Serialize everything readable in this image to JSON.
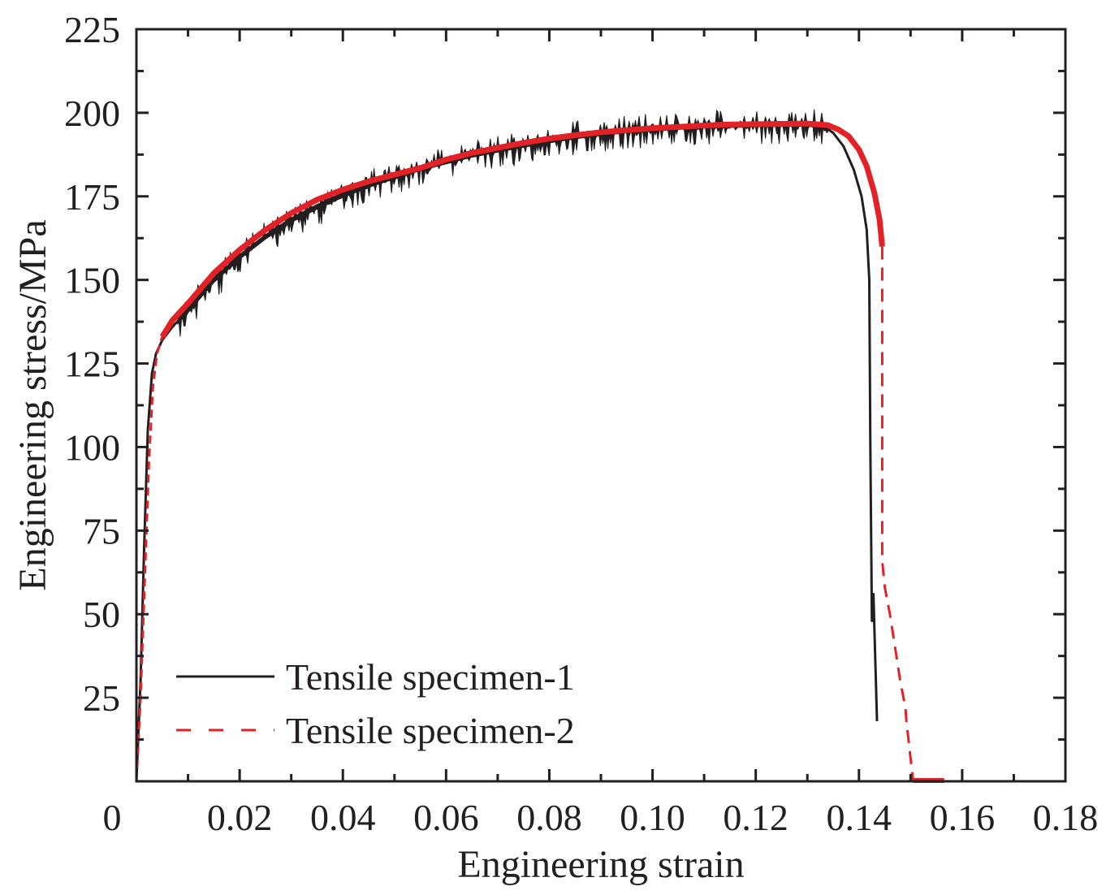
{
  "chart_data": {
    "type": "line",
    "title": "",
    "xlabel": "Engineering strain",
    "ylabel": "Engineering stress/MPa",
    "xlim": [
      0,
      0.18
    ],
    "ylim": [
      0,
      225
    ],
    "grid": false,
    "legend_position": "bottom-left",
    "x_ticks": [
      0,
      0.02,
      0.04,
      0.06,
      0.08,
      0.1,
      0.12,
      0.14,
      0.16,
      0.18
    ],
    "x_tick_labels": [
      "0",
      "0.02",
      "0.04",
      "0.06",
      "0.08",
      "0.10",
      "0.12",
      "0.14",
      "0.16",
      "0.18"
    ],
    "y_ticks": [
      25,
      50,
      75,
      100,
      125,
      150,
      175,
      200,
      225
    ],
    "y_tick_labels": [
      "25",
      "50",
      "75",
      "100",
      "125",
      "150",
      "175",
      "200",
      "225"
    ],
    "series": [
      {
        "name": "Tensile specimen-1",
        "color": "#231f20",
        "style": "solid",
        "noisy": true,
        "x": [
          0.0,
          0.0008,
          0.0015,
          0.0022,
          0.003,
          0.0038,
          0.005,
          0.007,
          0.01,
          0.015,
          0.02,
          0.025,
          0.03,
          0.035,
          0.04,
          0.045,
          0.05,
          0.055,
          0.06,
          0.065,
          0.07,
          0.075,
          0.08,
          0.085,
          0.09,
          0.095,
          0.1,
          0.105,
          0.11,
          0.115,
          0.12,
          0.125,
          0.13,
          0.133,
          0.135,
          0.137,
          0.139,
          0.1405,
          0.1415,
          0.142,
          0.1422,
          0.1425,
          0.1428,
          0.1435
        ],
        "y": [
          0,
          30,
          70,
          105,
          122,
          128,
          132,
          136,
          141,
          150,
          157,
          163,
          168,
          172,
          175.5,
          178.5,
          181,
          183.5,
          185.5,
          187.5,
          189,
          190.5,
          191.8,
          193,
          194,
          194.8,
          195.3,
          195.8,
          196.2,
          196.4,
          196.6,
          196.7,
          196.8,
          196.2,
          194,
          190,
          183,
          175,
          165,
          150,
          100,
          48,
          56,
          18
        ]
      },
      {
        "name": "Tensile specimen-2",
        "color": "#e32228",
        "style": "dashed",
        "noisy": false,
        "x": [
          0.0,
          0.0008,
          0.0016,
          0.0024,
          0.0032,
          0.004,
          0.005,
          0.007,
          0.01,
          0.015,
          0.02,
          0.025,
          0.03,
          0.035,
          0.04,
          0.045,
          0.05,
          0.055,
          0.06,
          0.065,
          0.07,
          0.075,
          0.08,
          0.085,
          0.09,
          0.095,
          0.1,
          0.105,
          0.11,
          0.115,
          0.12,
          0.125,
          0.13,
          0.134,
          0.136,
          0.138,
          0.14,
          0.1415,
          0.143,
          0.144,
          0.1445,
          0.1445,
          0.145,
          0.146,
          0.147,
          0.148,
          0.149,
          0.1492,
          0.1505,
          0.1565
        ],
        "y": [
          0,
          25,
          60,
          95,
          118,
          128,
          133,
          138,
          143,
          152,
          159,
          165,
          170,
          174,
          177,
          179.5,
          181.5,
          183.5,
          186,
          188,
          189.5,
          191,
          192.3,
          193.3,
          194.2,
          194.8,
          195.4,
          195.8,
          196.2,
          196.5,
          196.6,
          196.7,
          196.8,
          196.3,
          195,
          193,
          189,
          184,
          176,
          168,
          160,
          66,
          58,
          50,
          40,
          30,
          22,
          18,
          0,
          0
        ]
      }
    ]
  }
}
